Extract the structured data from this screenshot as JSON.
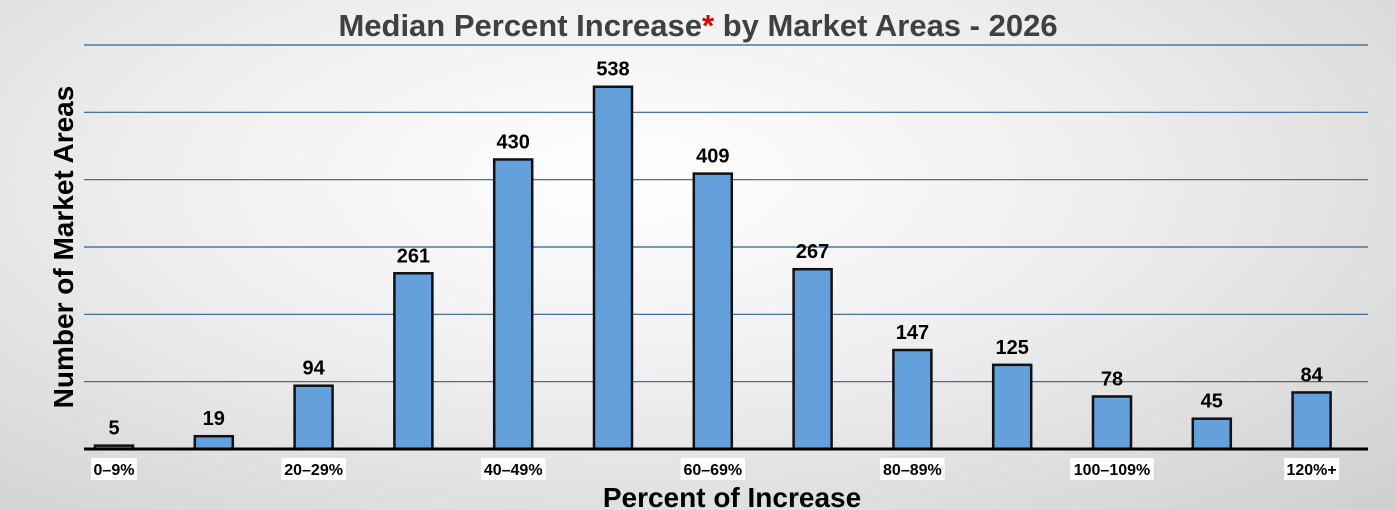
{
  "chart_data": {
    "type": "bar",
    "title": "Median Percent Increase",
    "title_marker": "*",
    "title_suffix": " by Market Areas - 2026",
    "xlabel": "Percent of Increase",
    "ylabel": "Number of Market Areas",
    "categories": [
      "0–9%",
      "",
      "20–29%",
      "",
      "40–49%",
      "",
      "60–69%",
      "",
      "80–89%",
      "",
      "100–109%",
      "",
      "120%+"
    ],
    "values": [
      5,
      19,
      94,
      261,
      430,
      538,
      409,
      267,
      147,
      125,
      78,
      45,
      84
    ],
    "ylim": [
      0,
      600
    ],
    "y_gridline_step": 100,
    "grid": true,
    "legend": "none",
    "colors": {
      "bar_fill": "#64a0dc",
      "bar_stroke": "#111111",
      "gridline": "#2f5f95",
      "title": "#404040",
      "title_marker": "#e00000"
    }
  }
}
